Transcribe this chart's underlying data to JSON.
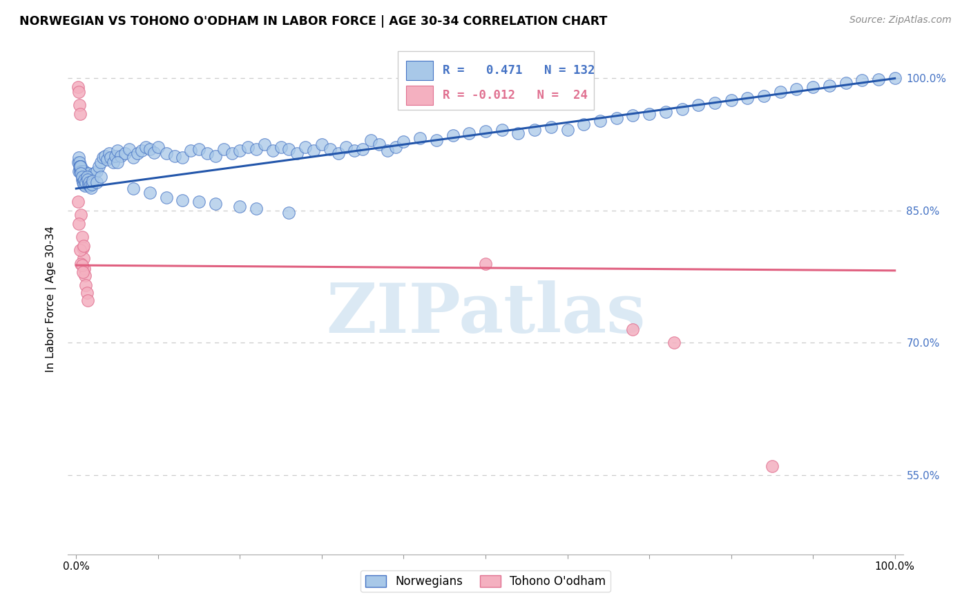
{
  "title": "NORWEGIAN VS TOHONO O'ODHAM IN LABOR FORCE | AGE 30-34 CORRELATION CHART",
  "source": "Source: ZipAtlas.com",
  "ylabel": "In Labor Force | Age 30-34",
  "norwegian_R": 0.471,
  "norwegian_N": 132,
  "tohono_R": -0.012,
  "tohono_N": 24,
  "norwegian_color": "#a8c8e8",
  "norwegian_edge_color": "#4472c4",
  "tohono_color": "#f4b0c0",
  "tohono_edge_color": "#e07090",
  "line_norwegian_color": "#2255aa",
  "line_tohono_color": "#e06080",
  "background_color": "#ffffff",
  "watermark_color": "#cde0f0",
  "grid_color": "#cccccc",
  "right_tick_color": "#4472c4",
  "ytick_positions": [
    0.55,
    0.7,
    0.85,
    1.0
  ],
  "ytick_labels": [
    "55.0%",
    "70.0%",
    "85.0%",
    "100.0%"
  ],
  "xtick_positions": [
    0.0,
    0.1,
    0.2,
    0.3,
    0.4,
    0.5,
    0.6,
    0.7,
    0.8,
    0.9,
    1.0
  ],
  "xtick_labels": [
    "0.0%",
    "",
    "",
    "",
    "",
    "",
    "",
    "",
    "",
    "",
    "100.0%"
  ],
  "ylim_low": 0.46,
  "ylim_high": 1.04,
  "xlim_low": -0.01,
  "xlim_high": 1.01,
  "nor_line_x0": 0.0,
  "nor_line_y0": 0.875,
  "nor_line_x1": 1.0,
  "nor_line_y1": 1.0,
  "toh_line_x0": 0.0,
  "toh_line_y0": 0.788,
  "toh_line_x1": 1.0,
  "toh_line_y1": 0.782,
  "nor_x": [
    0.002,
    0.003,
    0.003,
    0.004,
    0.004,
    0.005,
    0.005,
    0.006,
    0.006,
    0.007,
    0.007,
    0.007,
    0.008,
    0.008,
    0.009,
    0.009,
    0.01,
    0.01,
    0.011,
    0.011,
    0.012,
    0.012,
    0.013,
    0.013,
    0.014,
    0.015,
    0.015,
    0.016,
    0.017,
    0.018,
    0.019,
    0.02,
    0.022,
    0.025,
    0.028,
    0.03,
    0.033,
    0.035,
    0.038,
    0.04,
    0.042,
    0.045,
    0.048,
    0.05,
    0.055,
    0.06,
    0.065,
    0.07,
    0.075,
    0.08,
    0.085,
    0.09,
    0.095,
    0.1,
    0.11,
    0.12,
    0.13,
    0.14,
    0.15,
    0.16,
    0.17,
    0.18,
    0.19,
    0.2,
    0.21,
    0.22,
    0.23,
    0.24,
    0.25,
    0.26,
    0.27,
    0.28,
    0.29,
    0.3,
    0.31,
    0.32,
    0.33,
    0.34,
    0.35,
    0.36,
    0.37,
    0.38,
    0.39,
    0.4,
    0.42,
    0.44,
    0.46,
    0.48,
    0.5,
    0.52,
    0.54,
    0.56,
    0.58,
    0.6,
    0.62,
    0.64,
    0.66,
    0.68,
    0.7,
    0.72,
    0.74,
    0.76,
    0.78,
    0.8,
    0.82,
    0.84,
    0.86,
    0.88,
    0.9,
    0.92,
    0.94,
    0.96,
    0.98,
    1.0,
    0.005,
    0.006,
    0.007,
    0.008,
    0.009,
    0.01,
    0.011,
    0.012,
    0.013,
    0.014,
    0.015,
    0.016,
    0.017,
    0.018,
    0.019,
    0.02,
    0.025,
    0.03,
    0.05,
    0.07,
    0.09,
    0.11,
    0.13,
    0.15,
    0.17,
    0.2,
    0.22,
    0.26
  ],
  "nor_y": [
    0.905,
    0.895,
    0.91,
    0.905,
    0.9,
    0.9,
    0.895,
    0.9,
    0.895,
    0.89,
    0.885,
    0.895,
    0.885,
    0.892,
    0.887,
    0.895,
    0.882,
    0.895,
    0.883,
    0.89,
    0.885,
    0.892,
    0.88,
    0.888,
    0.882,
    0.887,
    0.892,
    0.885,
    0.878,
    0.882,
    0.885,
    0.888,
    0.892,
    0.895,
    0.9,
    0.905,
    0.91,
    0.912,
    0.908,
    0.915,
    0.91,
    0.905,
    0.912,
    0.918,
    0.912,
    0.915,
    0.92,
    0.91,
    0.915,
    0.918,
    0.922,
    0.92,
    0.916,
    0.922,
    0.915,
    0.912,
    0.91,
    0.918,
    0.92,
    0.915,
    0.912,
    0.92,
    0.915,
    0.918,
    0.922,
    0.92,
    0.925,
    0.918,
    0.922,
    0.92,
    0.915,
    0.922,
    0.918,
    0.925,
    0.92,
    0.915,
    0.922,
    0.918,
    0.92,
    0.93,
    0.925,
    0.918,
    0.922,
    0.928,
    0.932,
    0.93,
    0.935,
    0.938,
    0.94,
    0.942,
    0.938,
    0.942,
    0.945,
    0.942,
    0.948,
    0.952,
    0.955,
    0.958,
    0.96,
    0.962,
    0.965,
    0.97,
    0.972,
    0.975,
    0.978,
    0.98,
    0.985,
    0.988,
    0.99,
    0.992,
    0.995,
    0.998,
    0.999,
    1.0,
    0.9,
    0.892,
    0.888,
    0.882,
    0.88,
    0.885,
    0.878,
    0.882,
    0.888,
    0.885,
    0.88,
    0.882,
    0.878,
    0.876,
    0.88,
    0.884,
    0.882,
    0.888,
    0.905,
    0.875,
    0.87,
    0.865,
    0.862,
    0.86,
    0.858,
    0.855,
    0.852,
    0.848
  ],
  "toh_x": [
    0.002,
    0.003,
    0.004,
    0.005,
    0.006,
    0.007,
    0.008,
    0.009,
    0.01,
    0.011,
    0.012,
    0.013,
    0.014,
    0.005,
    0.003,
    0.002,
    0.006,
    0.007,
    0.008,
    0.009,
    0.5,
    0.68,
    0.73,
    0.85
  ],
  "toh_y": [
    0.99,
    0.985,
    0.97,
    0.96,
    0.845,
    0.82,
    0.808,
    0.796,
    0.784,
    0.776,
    0.765,
    0.757,
    0.748,
    0.805,
    0.835,
    0.86,
    0.79,
    0.788,
    0.78,
    0.81,
    0.79,
    0.715,
    0.7,
    0.56
  ]
}
